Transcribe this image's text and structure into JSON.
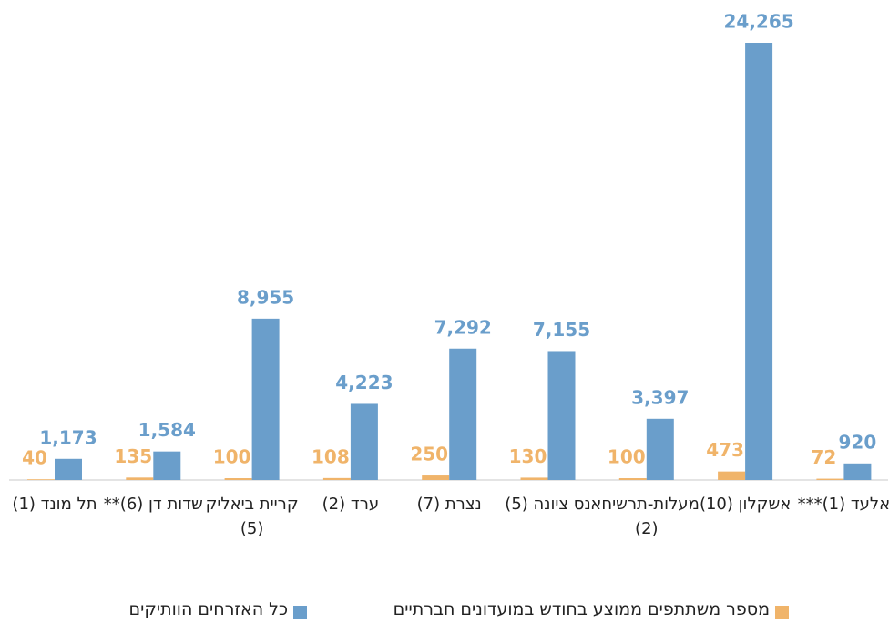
{
  "chart_data": {
    "type": "bar",
    "categories": [
      "תל מונד (1)",
      "שדות דן (6)**",
      "קריית ביאליק (5)",
      "ערד (2)",
      "נצרת (7)",
      "נס ציונה (5)",
      "מעלות-תרשיחא (2)",
      "אשקלון (10)",
      "אלעד (1)***"
    ],
    "series": [
      {
        "name": "מספר משתתפים ממוצע בחודש במועדונים חברתיים",
        "color": "#f0b46a",
        "values": [
          40,
          135,
          100,
          108,
          250,
          130,
          100,
          473,
          72
        ]
      },
      {
        "name": "כל האזרחים הוותיקים",
        "color": "#6a9ecb",
        "values": [
          1173,
          1584,
          8955,
          4223,
          7292,
          7155,
          3397,
          24265,
          920
        ],
        "value_labels": [
          "1,173",
          "1,584",
          "8,955",
          "4,223",
          "7,292",
          "7,155",
          "3,397",
          "24,265",
          "920"
        ]
      }
    ],
    "legend": "bottom"
  }
}
